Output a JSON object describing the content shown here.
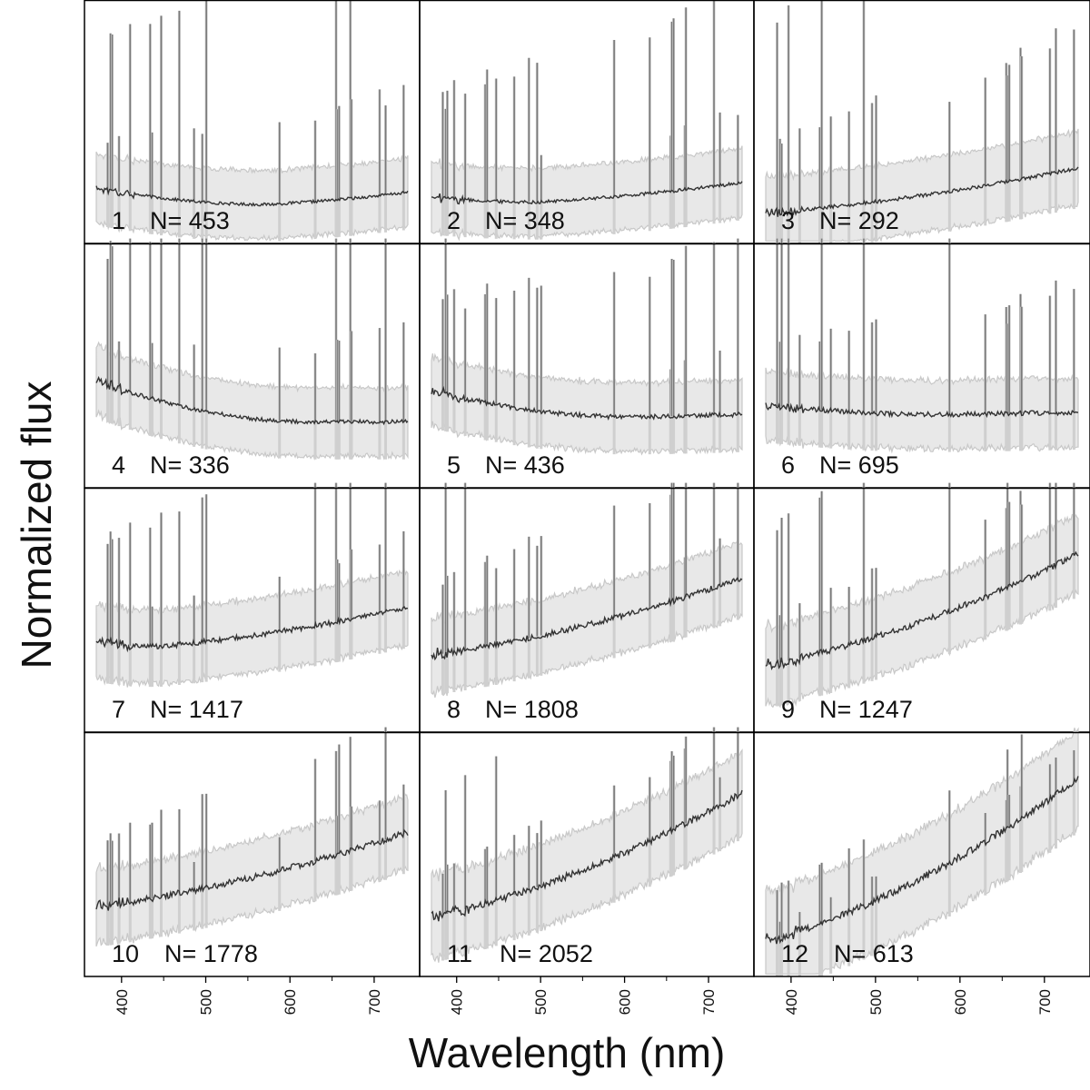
{
  "chart_data": {
    "type": "line",
    "xlabel": "Wavelength (nm)",
    "ylabel": "Normalized flux",
    "x_ticks": [
      400,
      500,
      600,
      700
    ],
    "xlim": [
      370,
      740
    ],
    "grid": false,
    "colors": {
      "mean": "#333333",
      "band": "#e8e8e8",
      "band_edge": "#c8c8c8",
      "lines": "#7a7a7a",
      "frame": "#000000"
    },
    "emission_lines_nm": [
      383.5,
      386.9,
      388.9,
      397.0,
      410.2,
      434.0,
      436.3,
      447.1,
      468.6,
      486.1,
      495.9,
      500.7,
      587.6,
      630.0,
      654.8,
      656.3,
      658.4,
      671.7,
      673.1,
      706.5,
      713.6,
      735.0
    ],
    "panels": [
      {
        "id": "1",
        "label_num": "1",
        "label_n": "N= 453",
        "start": 0.23,
        "trough": 0.16,
        "end": 0.21,
        "trough_at": 0.55,
        "spread": 0.14
      },
      {
        "id": "2",
        "label_num": "2",
        "label_n": "N= 348",
        "start": 0.19,
        "trough": 0.17,
        "end": 0.25,
        "trough_at": 0.35,
        "spread": 0.14
      },
      {
        "id": "3",
        "label_num": "3",
        "label_n": "N= 292",
        "start": 0.13,
        "trough": 0.13,
        "end": 0.31,
        "trough_at": 0.05,
        "spread": 0.15
      },
      {
        "id": "4",
        "label_num": "4",
        "label_n": "N= 336",
        "start": 0.44,
        "trough": 0.27,
        "end": 0.27,
        "trough_at": 0.7,
        "spread": 0.14
      },
      {
        "id": "5",
        "label_num": "5",
        "label_n": "N= 436",
        "start": 0.4,
        "trough": 0.29,
        "end": 0.3,
        "trough_at": 0.65,
        "spread": 0.14
      },
      {
        "id": "6",
        "label_num": "6",
        "label_n": "N= 695",
        "start": 0.34,
        "trough": 0.3,
        "end": 0.31,
        "trough_at": 0.55,
        "spread": 0.14
      },
      {
        "id": "7",
        "label_num": "7",
        "label_n": "N= 1417",
        "start": 0.37,
        "trough": 0.35,
        "end": 0.51,
        "trough_at": 0.2,
        "spread": 0.15
      },
      {
        "id": "8",
        "label_num": "8",
        "label_n": "N= 1808",
        "start": 0.32,
        "trough": 0.32,
        "end": 0.63,
        "trough_at": 0.03,
        "spread": 0.15
      },
      {
        "id": "9",
        "label_num": "9",
        "label_n": "N= 1247",
        "start": 0.28,
        "trough": 0.28,
        "end": 0.73,
        "trough_at": 0.03,
        "spread": 0.16
      },
      {
        "id": "10",
        "label_num": "10",
        "label_n": "N= 1778",
        "start": 0.29,
        "trough": 0.29,
        "end": 0.59,
        "trough_at": 0.03,
        "spread": 0.15
      },
      {
        "id": "11",
        "label_num": "11",
        "label_n": "N= 2052",
        "start": 0.25,
        "trough": 0.25,
        "end": 0.75,
        "trough_at": 0.03,
        "spread": 0.17
      },
      {
        "id": "12",
        "label_num": "12",
        "label_n": "N= 613",
        "start": 0.15,
        "trough": 0.15,
        "end": 0.81,
        "trough_at": 0.03,
        "spread": 0.2
      }
    ]
  }
}
